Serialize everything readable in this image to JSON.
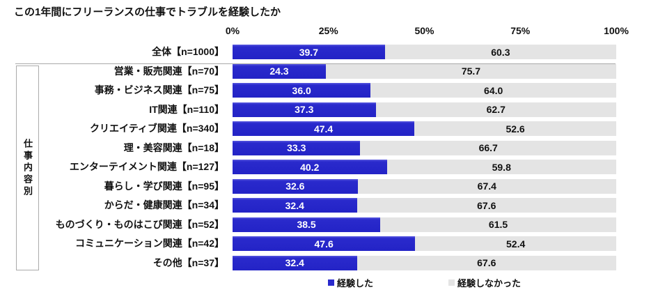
{
  "title": "この1年間にフリーランスの仕事でトラブルを経験したか",
  "sidebar_label": "仕事内容別",
  "colors": {
    "experienced": "#2a2acc",
    "not_experienced": "#e4e4e4"
  },
  "legend": [
    {
      "label": "経験した",
      "color": "#2a2acc"
    },
    {
      "label": "経験しなかった",
      "color": "#e4e4e4"
    }
  ],
  "chart_data": {
    "type": "bar",
    "orientation": "horizontal",
    "stacked": true,
    "title": "この1年間にフリーランスの仕事でトラブルを経験したか",
    "x_ticks": [
      "0%",
      "25%",
      "50%",
      "75%",
      "100%"
    ],
    "xlim": [
      0,
      100
    ],
    "grid": false,
    "legend_position": "bottom",
    "categories": [
      "全体【n=1000】",
      "営業・販売関連【n=70】",
      "事務・ビジネス関連【n=75】",
      "IT関連【n=110】",
      "クリエイティブ関連【n=340】",
      "理・美容関連【n=18】",
      "エンターテイメント関連【n=127】",
      "暮らし・学び関連【n=95】",
      "からだ・健康関連【n=34】",
      "ものづくり・ものはこび関連【n=52】",
      "コミュニケーション関連【n=42】",
      "その他【n=37】"
    ],
    "series": [
      {
        "name": "経験した",
        "values": [
          39.7,
          24.3,
          36.0,
          37.3,
          47.4,
          33.3,
          40.2,
          32.6,
          32.4,
          38.5,
          47.6,
          32.4
        ]
      },
      {
        "name": "経験しなかった",
        "values": [
          60.3,
          75.7,
          64.0,
          62.7,
          52.6,
          66.7,
          59.8,
          67.4,
          67.6,
          61.5,
          52.4,
          67.6
        ]
      }
    ]
  }
}
